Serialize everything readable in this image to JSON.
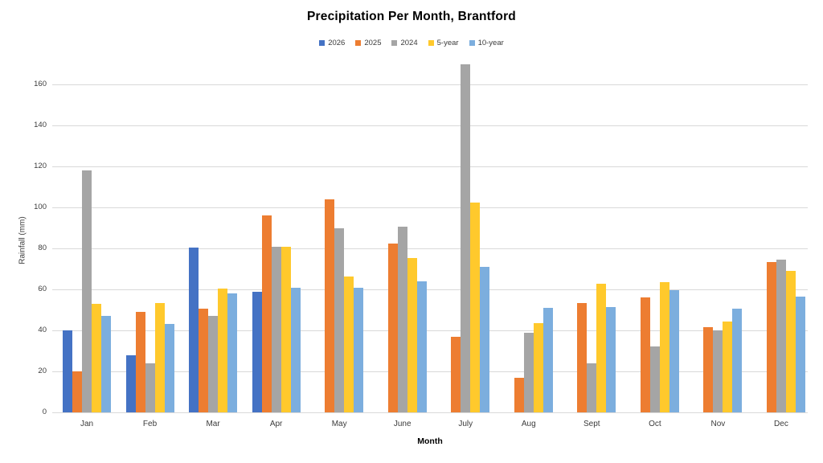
{
  "chart_data": {
    "type": "bar",
    "title": "Precipitation Per Month, Brantford",
    "xlabel": "Month",
    "ylabel": "Rainfall (mm)",
    "categories": [
      "Jan",
      "Feb",
      "Mar",
      "Apr",
      "May",
      "June",
      "July",
      "Aug",
      "Sept",
      "Oct",
      "Nov",
      "Dec"
    ],
    "series": [
      {
        "name": "2026",
        "color": "#4472C4",
        "values": [
          40,
          28,
          80.5,
          59,
          null,
          null,
          null,
          null,
          null,
          null,
          null,
          null
        ]
      },
      {
        "name": "2025",
        "color": "#ED7D31",
        "values": [
          20,
          49,
          50.5,
          96,
          104,
          82.5,
          37,
          17,
          53.5,
          56,
          41.5,
          73.5
        ]
      },
      {
        "name": "2024",
        "color": "#A5A5A5",
        "values": [
          118,
          24,
          47,
          81,
          90,
          90.5,
          170,
          39,
          24,
          32,
          40,
          74.5
        ]
      },
      {
        "name": "5-year",
        "color": "#FFC92C",
        "values": [
          53,
          53.5,
          60.5,
          81,
          66.5,
          75.5,
          102.5,
          43.5,
          63,
          63.5,
          44.5,
          69
        ]
      },
      {
        "name": "10-year",
        "color": "#7CAEDE",
        "values": [
          47,
          43,
          58,
          61,
          61,
          64,
          71,
          51,
          51.5,
          59.5,
          50.5,
          56.5
        ]
      }
    ],
    "ylim": [
      0,
      168
    ],
    "yticks": [
      0,
      20,
      40,
      60,
      80,
      100,
      120,
      140,
      160
    ],
    "grid": true,
    "legend_position": "top",
    "gridline_color": "#D9D9D9",
    "text_color": "#3b3b3b",
    "title_color": "#000000"
  }
}
